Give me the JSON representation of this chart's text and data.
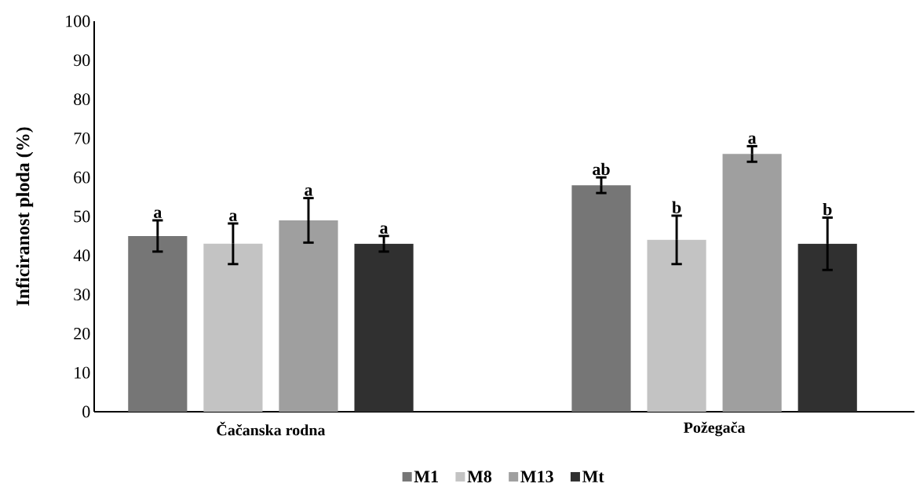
{
  "chart_data": {
    "type": "bar",
    "ylabel": "Inficiranost ploda (%)",
    "categories": [
      "Čačanska rodna",
      "Požegača"
    ],
    "series": [
      {
        "name": "M1",
        "color": "#767676",
        "values": [
          45,
          58
        ],
        "errors": [
          4,
          2
        ],
        "value_labels": [
          "a",
          "ab"
        ]
      },
      {
        "name": "M8",
        "color": "#c3c3c3",
        "values": [
          43,
          44
        ],
        "errors": [
          5.2,
          6.2
        ],
        "value_labels": [
          "a",
          "b"
        ]
      },
      {
        "name": "M13",
        "color": "#9f9f9f",
        "values": [
          49,
          66
        ],
        "errors": [
          5.7,
          2
        ],
        "value_labels": [
          "a",
          "a"
        ]
      },
      {
        "name": "Mt",
        "color": "#303030",
        "values": [
          43,
          43
        ],
        "errors": [
          2,
          6.7
        ],
        "value_labels": [
          "a",
          "b"
        ]
      }
    ],
    "ylim": [
      0,
      100
    ],
    "yticks": [
      0,
      10,
      20,
      30,
      40,
      50,
      60,
      70,
      80,
      90,
      100
    ],
    "grid": false,
    "legend": "bottom"
  }
}
